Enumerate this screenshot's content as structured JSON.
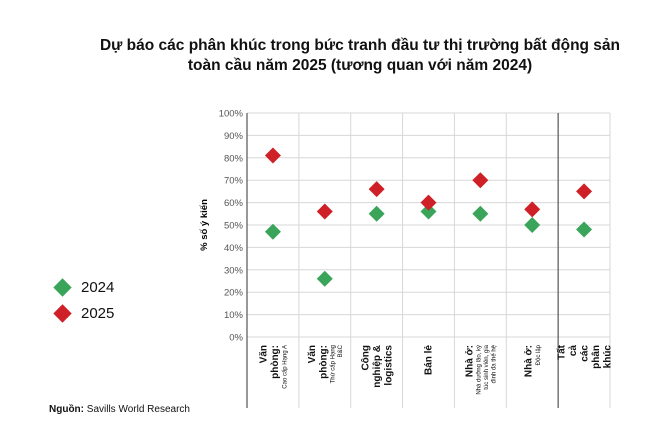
{
  "title_line1": "Dự báo các phân khúc trong bức tranh đầu tư thị trường bất động sản",
  "title_line2": "toàn cầu năm 2025 (tương quan với năm 2024)",
  "source_label": "Nguồn:",
  "source_text": "Savills World Research",
  "colors": {
    "s2024": "#3aa55a",
    "s2025": "#cf2027",
    "grid": "#d7d7d7",
    "axis": "#444444"
  },
  "chart_data": {
    "type": "scatter",
    "ylabel": "% số ý kiến",
    "ylim": [
      0,
      100
    ],
    "yticks": [
      "0%",
      "10%",
      "20%",
      "30%",
      "40%",
      "50%",
      "60%",
      "70%",
      "80%",
      "90%",
      "100%"
    ],
    "categories": [
      {
        "main": [
          "Văn",
          "phòng:"
        ],
        "sub": [
          "Cao cấp Hạng A"
        ]
      },
      {
        "main": [
          "Văn",
          "phòng:"
        ],
        "sub": [
          "Thứ cấp Hạng",
          "B&C"
        ]
      },
      {
        "main": [
          "Công",
          "nghiệp &",
          "logistics"
        ],
        "sub": []
      },
      {
        "main": [
          "Bán lẻ"
        ],
        "sub": []
      },
      {
        "main": [
          "Nhà ở:"
        ],
        "sub": [
          "Nhà dưỡng lão, ký",
          "túc sinh viên, gia",
          "đình đa thế hệ"
        ]
      },
      {
        "main": [
          "Nhà ở:"
        ],
        "sub": [
          "Độc lập"
        ]
      },
      {
        "main": [
          "Tất",
          "cả",
          "các",
          "phân",
          "khúc"
        ],
        "sub": []
      }
    ],
    "series": [
      {
        "name": "2024",
        "values": [
          47,
          26,
          55,
          56,
          55,
          50,
          48
        ]
      },
      {
        "name": "2025",
        "values": [
          81,
          56,
          66,
          60,
          70,
          57,
          65
        ]
      }
    ],
    "legend": "left"
  }
}
